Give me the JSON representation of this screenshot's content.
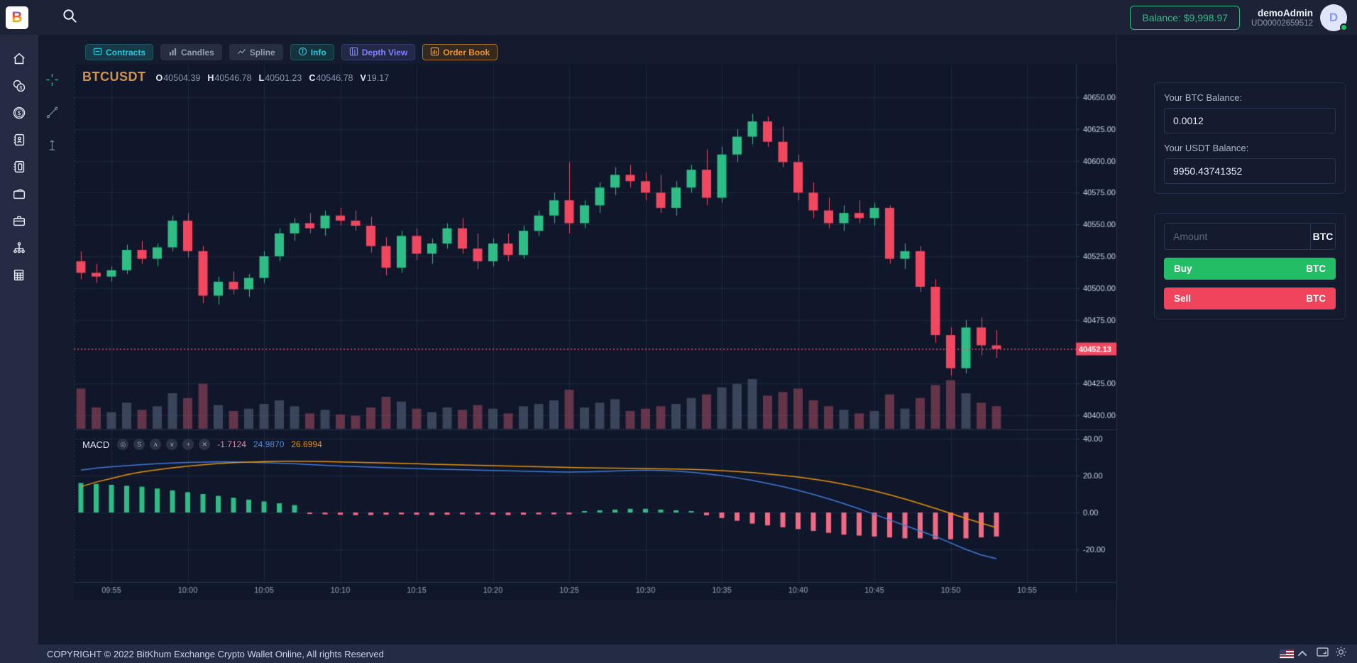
{
  "topbar": {
    "logo_letter": "B",
    "balance_label": "Balance: $9,998.97",
    "username": "demoAdmin",
    "user_id": "UD00002659512",
    "avatar_letter": "D"
  },
  "sidebar": {
    "items": [
      {
        "icon": "home-icon"
      },
      {
        "icon": "coins-icon"
      },
      {
        "icon": "dollar-circle-icon"
      },
      {
        "icon": "contacts-book-icon"
      },
      {
        "icon": "notebook-icon"
      },
      {
        "icon": "wallet-icon"
      },
      {
        "icon": "briefcase-icon"
      },
      {
        "icon": "network-icon"
      },
      {
        "icon": "report-icon"
      }
    ]
  },
  "chart_tools": [
    {
      "icon": "crosshair-icon",
      "color": "#2ebd85"
    },
    {
      "icon": "trendline-icon",
      "color": "#7d8699"
    },
    {
      "icon": "text-cursor-icon",
      "color": "#7d8699"
    }
  ],
  "tabs": [
    {
      "label": "Contracts",
      "color": "#2bc6da",
      "bg": "#163a47",
      "border": "#1d5563",
      "icon": "contracts-icon"
    },
    {
      "label": "Candles",
      "color": "#939cae",
      "bg": "#272e41",
      "border": "#272e41",
      "icon": "candles-icon"
    },
    {
      "label": "Spline",
      "color": "#939cae",
      "bg": "#272e41",
      "border": "#272e41",
      "icon": "spline-icon"
    },
    {
      "label": "Info",
      "color": "#2bc6da",
      "bg": "#15333f",
      "border": "#1d5563",
      "icon": "info-icon"
    },
    {
      "label": "Depth View",
      "color": "#7d82f8",
      "bg": "#232849",
      "border": "#343a6b",
      "icon": "depth-view-icon"
    },
    {
      "label": "Order Book",
      "color": "#f0932a",
      "bg": "#33291f",
      "border": "#a96f2d",
      "icon": "order-book-icon"
    }
  ],
  "symbol_header": {
    "symbol": "BTCUSDT",
    "fields": [
      {
        "label": "O",
        "value": "40504.39"
      },
      {
        "label": "H",
        "value": "40546.78"
      },
      {
        "label": "L",
        "value": "40501.23"
      },
      {
        "label": "C",
        "value": "40546.78"
      },
      {
        "label": "V",
        "value": "19.17"
      }
    ]
  },
  "macd_row": {
    "label": "MACD",
    "icons": [
      {
        "name": "eye-icon",
        "glyph": "◎"
      },
      {
        "name": "settings-icon",
        "glyph": "S"
      },
      {
        "name": "arrow-up-icon",
        "glyph": "∧"
      },
      {
        "name": "arrow-down-icon",
        "glyph": "∨"
      },
      {
        "name": "plus-icon",
        "glyph": "+"
      },
      {
        "name": "close-icon",
        "glyph": "✕"
      }
    ],
    "hist_value": "-1.7124",
    "macd_value": "24.9870",
    "signal_value": "26.6994"
  },
  "trade_panel": {
    "btc_balance_label": "Your BTC Balance:",
    "btc_balance": "0.0012",
    "usdt_balance_label": "Your USDT Balance:",
    "usdt_balance": "9950.43741352",
    "amount_placeholder": "Amount",
    "amount_unit": "BTC",
    "buy_label": "Buy",
    "buy_unit": "BTC",
    "buy_color": "#23bd66",
    "sell_label": "Sell",
    "sell_unit": "BTC",
    "sell_color": "#f0445c"
  },
  "footer": {
    "copyright": "COPYRIGHT © 2022 BitKhum Exchange Crypto Wallet Online, All rights Reserved",
    "icons": [
      "us-flag-icon",
      "chevron-up-icon",
      "fullscreen-icon",
      "theme-sun-icon"
    ]
  },
  "chart_data": {
    "type": "candlestick",
    "symbol": "BTCUSDT",
    "interval_minutes": 1,
    "title": "BTCUSDT 1m with volume and MACD",
    "price_axis": {
      "min": 40390,
      "max": 40672,
      "values": [
        40650,
        40625,
        40600,
        40575,
        40550,
        40525,
        40500,
        40475,
        40425,
        40400
      ],
      "labels": [
        "40650.00",
        "40625.00",
        "40600.00",
        "40575.00",
        "40550.00",
        "40525.00",
        "40500.00",
        "40475.00",
        "40425.00",
        "40400.00"
      ]
    },
    "macd_axis": {
      "values": [
        40,
        20,
        0,
        -20
      ],
      "labels": [
        "40.00",
        "20.00",
        "0.00",
        "-20.00"
      ]
    },
    "time_ticks": [
      "09:55",
      "10:00",
      "10:05",
      "10:10",
      "10:15",
      "10:20",
      "10:25",
      "10:30",
      "10:35",
      "10:40",
      "10:45",
      "10:50",
      "10:55"
    ],
    "last_price": 40452.13,
    "last_price_label": "40452.13",
    "candles": [
      [
        "09:53",
        40521,
        40529,
        40507,
        40512,
        34
      ],
      [
        "09:54",
        40512,
        40519,
        40504,
        40509,
        18
      ],
      [
        "09:55",
        40509,
        40517,
        40505,
        40514,
        14
      ],
      [
        "09:56",
        40514,
        40534,
        40511,
        40530,
        22
      ],
      [
        "09:57",
        40530,
        40537,
        40519,
        40523,
        16
      ],
      [
        "09:58",
        40523,
        40535,
        40517,
        40532,
        19
      ],
      [
        "09:59",
        40532,
        40557,
        40529,
        40553,
        30
      ],
      [
        "10:00",
        40553,
        40559,
        40524,
        40529,
        26
      ],
      [
        "10:01",
        40529,
        40533,
        40488,
        40494,
        38
      ],
      [
        "10:02",
        40494,
        40509,
        40487,
        40505,
        20
      ],
      [
        "10:03",
        40505,
        40513,
        40495,
        40499,
        15
      ],
      [
        "10:04",
        40499,
        40511,
        40493,
        40508,
        17
      ],
      [
        "10:05",
        40508,
        40529,
        40504,
        40525,
        21
      ],
      [
        "10:06",
        40525,
        40547,
        40521,
        40543,
        24
      ],
      [
        "10:07",
        40543,
        40555,
        40537,
        40551,
        19
      ],
      [
        "10:08",
        40551,
        40559,
        40543,
        40547,
        13
      ],
      [
        "10:09",
        40547,
        40561,
        40541,
        40557,
        16
      ],
      [
        "10:10",
        40557,
        40563,
        40549,
        40553,
        12
      ],
      [
        "10:11",
        40553,
        40561,
        40545,
        40549,
        11
      ],
      [
        "10:12",
        40549,
        40556,
        40528,
        40533,
        18
      ],
      [
        "10:13",
        40533,
        40540,
        40510,
        40516,
        27
      ],
      [
        "10:14",
        40516,
        40545,
        40512,
        40541,
        23
      ],
      [
        "10:15",
        40541,
        40547,
        40522,
        40527,
        17
      ],
      [
        "10:16",
        40527,
        40539,
        40519,
        40535,
        14
      ],
      [
        "10:17",
        40535,
        40551,
        40531,
        40547,
        18
      ],
      [
        "10:18",
        40547,
        40555,
        40527,
        40531,
        16
      ],
      [
        "10:19",
        40531,
        40543,
        40515,
        40521,
        20
      ],
      [
        "10:20",
        40521,
        40539,
        40517,
        40535,
        17
      ],
      [
        "10:21",
        40535,
        40543,
        40521,
        40526,
        13
      ],
      [
        "10:22",
        40526,
        40549,
        40523,
        40545,
        19
      ],
      [
        "10:23",
        40545,
        40561,
        40541,
        40557,
        21
      ],
      [
        "10:24",
        40557,
        40575,
        40551,
        40569,
        24
      ],
      [
        "10:25",
        40569,
        40599,
        40543,
        40551,
        33
      ],
      [
        "10:26",
        40551,
        40569,
        40547,
        40565,
        18
      ],
      [
        "10:27",
        40565,
        40583,
        40559,
        40579,
        22
      ],
      [
        "10:28",
        40579,
        40595,
        40573,
        40589,
        25
      ],
      [
        "10:29",
        40589,
        40597,
        40579,
        40584,
        15
      ],
      [
        "10:30",
        40584,
        40591,
        40569,
        40575,
        17
      ],
      [
        "10:31",
        40575,
        40589,
        40559,
        40563,
        19
      ],
      [
        "10:32",
        40563,
        40584,
        40557,
        40579,
        21
      ],
      [
        "10:33",
        40579,
        40597,
        40575,
        40593,
        26
      ],
      [
        "10:34",
        40593,
        40609,
        40565,
        40571,
        29
      ],
      [
        "10:35",
        40571,
        40611,
        40567,
        40605,
        35
      ],
      [
        "10:36",
        40605,
        40625,
        40599,
        40619,
        38
      ],
      [
        "10:37",
        40619,
        40637,
        40613,
        40631,
        42
      ],
      [
        "10:38",
        40631,
        40635,
        40611,
        40615,
        28
      ],
      [
        "10:39",
        40615,
        40627,
        40595,
        40599,
        31
      ],
      [
        "10:40",
        40599,
        40605,
        40569,
        40575,
        34
      ],
      [
        "10:41",
        40575,
        40583,
        40555,
        40561,
        24
      ],
      [
        "10:42",
        40561,
        40571,
        40547,
        40551,
        19
      ],
      [
        "10:43",
        40551,
        40565,
        40545,
        40559,
        16
      ],
      [
        "10:44",
        40559,
        40569,
        40551,
        40555,
        13
      ],
      [
        "10:45",
        40555,
        40567,
        40549,
        40563,
        15
      ],
      [
        "10:46",
        40563,
        40565,
        40519,
        40523,
        29
      ],
      [
        "10:47",
        40523,
        40535,
        40515,
        40529,
        17
      ],
      [
        "10:48",
        40529,
        40533,
        40497,
        40501,
        26
      ],
      [
        "10:49",
        40501,
        40507,
        40457,
        40463,
        37
      ],
      [
        "10:50",
        40463,
        40469,
        40431,
        40437,
        41
      ],
      [
        "10:51",
        40437,
        40475,
        40433,
        40469,
        30
      ],
      [
        "10:52",
        40469,
        40477,
        40447,
        40455,
        22
      ],
      [
        "10:53",
        40455,
        40467,
        40445,
        40452.13,
        19
      ]
    ],
    "macd": {
      "hist": [
        16,
        15.5,
        15,
        14.5,
        14,
        13,
        12,
        11,
        10,
        9,
        8,
        7,
        6,
        5,
        4,
        -0.8,
        -1,
        -1.2,
        -1.4,
        -1.4,
        -1.2,
        -1,
        -1.2,
        -1.4,
        -1.2,
        -1,
        -1,
        -1.2,
        -1.4,
        -1.2,
        -1,
        -1,
        -1,
        0.8,
        1.2,
        1.6,
        2,
        2,
        1.6,
        1.2,
        0.8,
        -1.5,
        -3,
        -4.5,
        -6,
        -7,
        -8,
        -9,
        -10,
        -11,
        -12,
        -12.5,
        -13,
        -13.5,
        -14,
        -14,
        -14.5,
        -14.5,
        -14,
        -13.5,
        -13
      ],
      "macd": [
        23,
        24,
        24.8,
        25.4,
        26,
        26.4,
        26.8,
        27.1,
        27.3,
        27.5,
        27.4,
        27.2,
        27,
        26.7,
        26.4,
        26,
        25.6,
        25.2,
        24.9,
        24.6,
        24.3,
        24,
        23.8,
        23.6,
        23.4,
        23.2,
        23,
        22.8,
        22.6,
        22.4,
        22.2,
        22,
        21.9,
        22,
        22.2,
        22.5,
        22.8,
        23,
        22.8,
        22.4,
        21.8,
        21,
        20,
        18.8,
        17.4,
        15.8,
        14,
        12,
        9.8,
        7.4,
        4.8,
        2,
        -1,
        -4,
        -7,
        -10,
        -13,
        -16.5,
        -20,
        -23,
        -25
      ],
      "signal": [
        14,
        16.5,
        18.5,
        20.5,
        22,
        23.2,
        24.2,
        25.1,
        25.9,
        26.5,
        27,
        27.3,
        27.6,
        27.8,
        27.8,
        27.7,
        27.6,
        27.4,
        27.2,
        27,
        26.8,
        26.6,
        26.4,
        26.2,
        26,
        25.8,
        25.6,
        25.4,
        25.2,
        25,
        24.8,
        24.6,
        24.4,
        24.2,
        24.1,
        24,
        23.9,
        23.8,
        23.7,
        23.6,
        23.4,
        23.1,
        22.7,
        22.2,
        21.6,
        20.9,
        20.1,
        19.2,
        18.1,
        16.8,
        15.3,
        13.6,
        11.7,
        9.6,
        7.3,
        4.8,
        2.2,
        -0.5,
        -3.2,
        -5.8,
        -8.2
      ]
    },
    "colors": {
      "background": "#10172a",
      "grid": "#1d2742",
      "axis_line": "#2a3450",
      "up": "#2ebd85",
      "down": "#f1475f",
      "volume_up": "rgba(92,106,130,0.55)",
      "volume_down": "rgba(170,77,96,0.55)",
      "macd_line": "#3f7bd9",
      "signal_line": "#e8940c",
      "hist_pos": "#2ebd85",
      "hist_neg": "#f06a84",
      "axis_text": "#c9d1e4",
      "time_text": "#96a0b8",
      "last_price": "#f1475f"
    }
  }
}
